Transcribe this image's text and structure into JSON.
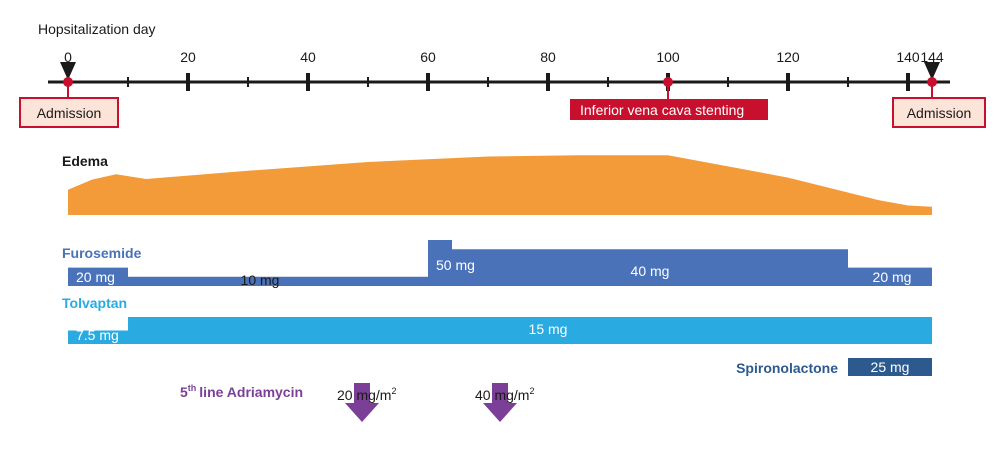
{
  "timeline": {
    "axis_label": "Hopsitalization day",
    "day_min": 0,
    "day_max": 145,
    "major_ticks": [
      0,
      20,
      40,
      60,
      80,
      100,
      120,
      140,
      144
    ],
    "minor_ticks": [
      10,
      30,
      50,
      70,
      90,
      110,
      130
    ],
    "event_days": [
      0,
      100,
      144
    ],
    "colors": {
      "axis": "#1a1a1a",
      "event": "#c8102e"
    }
  },
  "events": {
    "admission_start": {
      "day": 0,
      "label": "Admission"
    },
    "ivc_stenting": {
      "day": 100,
      "label": "Inferior vena cava stenting"
    },
    "admission_end": {
      "day": 144,
      "label": "Admission"
    }
  },
  "edema": {
    "label": "Edema",
    "color": "#f29b38",
    "profile": [
      {
        "day": 0,
        "level": 0.37
      },
      {
        "day": 4,
        "level": 0.52
      },
      {
        "day": 8,
        "level": 0.6
      },
      {
        "day": 13,
        "level": 0.53
      },
      {
        "day": 30,
        "level": 0.65
      },
      {
        "day": 50,
        "level": 0.78
      },
      {
        "day": 70,
        "level": 0.86
      },
      {
        "day": 85,
        "level": 0.88
      },
      {
        "day": 100,
        "level": 0.88
      },
      {
        "day": 120,
        "level": 0.55
      },
      {
        "day": 135,
        "level": 0.22
      },
      {
        "day": 140,
        "level": 0.14
      },
      {
        "day": 144,
        "level": 0.12
      }
    ]
  },
  "furosemide": {
    "label": "Furosemide",
    "color": "#4a72b8",
    "segments": [
      {
        "start": 0,
        "end": 10,
        "dose_level": 2,
        "label": "20 mg"
      },
      {
        "start": 10,
        "end": 60,
        "dose_level": 1,
        "label": "10 mg"
      },
      {
        "start": 60,
        "end": 64,
        "dose_level": 5,
        "label": "50 mg"
      },
      {
        "start": 64,
        "end": 130,
        "dose_level": 4,
        "label": "40 mg"
      },
      {
        "start": 130,
        "end": 144,
        "dose_level": 2,
        "label": "20 mg"
      }
    ]
  },
  "tolvaptan": {
    "label": "Tolvaptan",
    "color": "#29abe2",
    "segments": [
      {
        "start": 0,
        "end": 10,
        "dose_level": 1,
        "label": "7.5 mg"
      },
      {
        "start": 10,
        "end": 144,
        "dose_level": 2,
        "label": "15 mg"
      }
    ]
  },
  "spironolactone": {
    "label": "Spironolactone",
    "color": "#2c5a8e",
    "segments": [
      {
        "start": 130,
        "end": 144,
        "label": "25 mg"
      }
    ]
  },
  "adriamycin": {
    "label_sup": "th",
    "label_num": "5",
    "label_rest": "line Adriamycin",
    "color": "#7b3f98",
    "doses": [
      {
        "day": 49,
        "dose": "20 mg/m",
        "sup": "2"
      },
      {
        "day": 72,
        "dose": "40 mg/m",
        "sup": "2"
      }
    ]
  }
}
